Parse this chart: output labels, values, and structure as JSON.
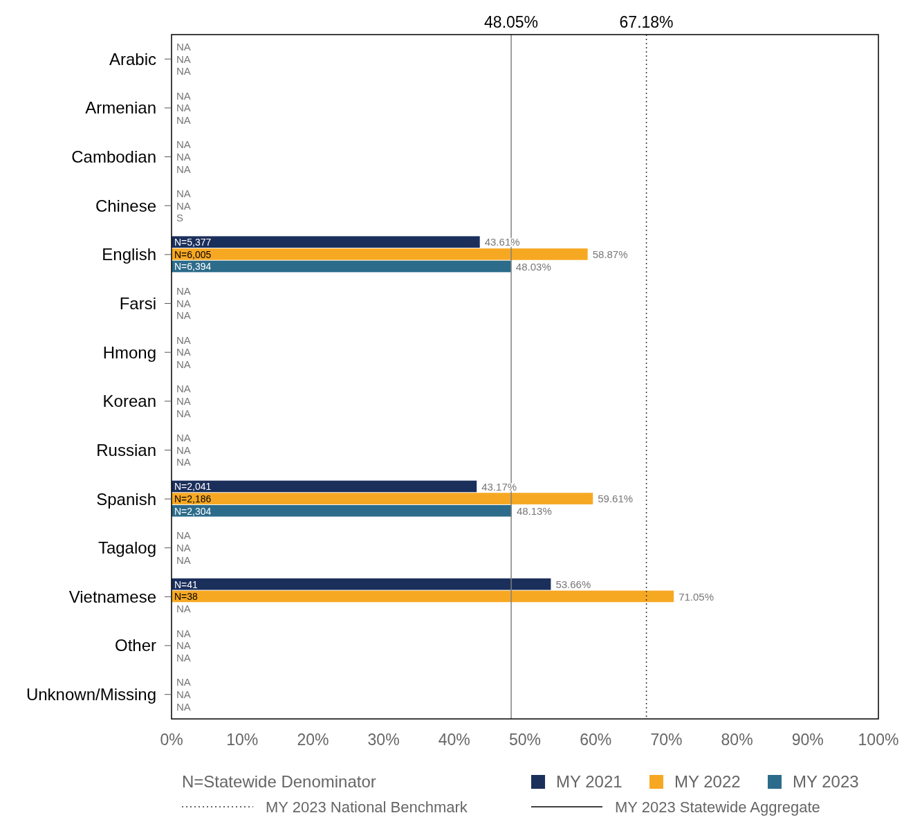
{
  "chart_data": {
    "type": "bar",
    "orientation": "horizontal",
    "categories": [
      "Arabic",
      "Armenian",
      "Cambodian",
      "Chinese",
      "English",
      "Farsi",
      "Hmong",
      "Korean",
      "Russian",
      "Spanish",
      "Tagalog",
      "Vietnamese",
      "Other",
      "Unknown/Missing"
    ],
    "series": [
      {
        "name": "MY 2021",
        "color": "#1b2f5b",
        "values": [
          null,
          null,
          null,
          null,
          43.61,
          null,
          null,
          null,
          null,
          43.17,
          null,
          53.66,
          null,
          null
        ],
        "value_labels": [
          "NA",
          "NA",
          "NA",
          "NA",
          "43.61%",
          "NA",
          "NA",
          "NA",
          "NA",
          "43.17%",
          "NA",
          "53.66%",
          "NA",
          "NA"
        ]
      },
      {
        "name": "MY 2022",
        "color": "#f7a823",
        "values": [
          null,
          null,
          null,
          null,
          58.87,
          null,
          null,
          null,
          null,
          59.61,
          null,
          71.05,
          null,
          null
        ],
        "value_labels": [
          "NA",
          "NA",
          "NA",
          "NA",
          "58.87%",
          "NA",
          "NA",
          "NA",
          "NA",
          "59.61%",
          "NA",
          "71.05%",
          "NA",
          "NA"
        ]
      },
      {
        "name": "MY 2023",
        "color": "#2c6b8a",
        "values": [
          null,
          null,
          null,
          null,
          48.03,
          null,
          null,
          null,
          null,
          48.13,
          null,
          null,
          null,
          null
        ],
        "value_labels": [
          "NA",
          "NA",
          "NA",
          "S",
          "48.03%",
          "NA",
          "NA",
          "NA",
          "NA",
          "48.13%",
          "NA",
          "NA",
          "NA",
          "NA"
        ]
      }
    ],
    "xlim": [
      0,
      100
    ],
    "xticks": [
      {
        "value": 0,
        "label": "0%"
      },
      {
        "value": 10,
        "label": "10%"
      },
      {
        "value": 20,
        "label": "20%"
      },
      {
        "value": 30,
        "label": "30%"
      },
      {
        "value": 40,
        "label": "40%"
      },
      {
        "value": 50,
        "label": "50%"
      },
      {
        "value": 60,
        "label": "60%"
      },
      {
        "value": 70,
        "label": "70%"
      },
      {
        "value": 80,
        "label": "80%"
      },
      {
        "value": 90,
        "label": "90%"
      },
      {
        "value": 100,
        "label": "100%"
      }
    ],
    "ref_lines": [
      {
        "axis": "x",
        "value": 67.18,
        "label": "67.18%",
        "color": "#333333",
        "line_style": "dotted"
      },
      {
        "axis": "x",
        "value": 48.05,
        "label": "48.05%",
        "color": "#808080",
        "line_style": "solid"
      }
    ],
    "annotations": [
      "N=Statewide Denominator",
      "MY 2023 National Benchmark",
      "MY 2023 Statewide Aggregate",
      "N=5,377",
      "N=6,005",
      "N=6,394",
      "N=2,041",
      "N=2,186",
      "N=2,304",
      "N=41",
      "N=38"
    ],
    "grid": false,
    "legend": "bottom"
  }
}
